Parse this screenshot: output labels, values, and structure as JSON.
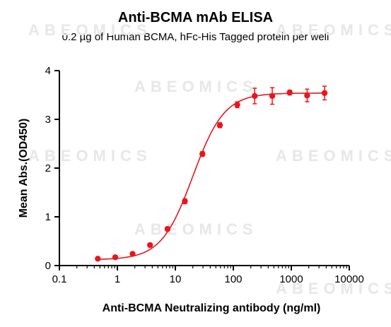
{
  "chart_data": {
    "type": "scatter",
    "title": "Anti-BCMA mAb ELISA",
    "subtitle": "0.2 µg of Human BCMA, hFc-His Tagged protein per well",
    "xlabel": "Anti-BCMA Neutralizing antibody (ng/ml)",
    "ylabel": "Mean Abs.(OD450)",
    "x_scale": "log",
    "xlim": [
      0.1,
      10000
    ],
    "ylim": [
      0,
      4
    ],
    "x_ticks": [
      "0.1",
      "1",
      "10",
      "100",
      "1000",
      "10000"
    ],
    "y_ticks": [
      "0",
      "1",
      "2",
      "3",
      "4"
    ],
    "grid": false,
    "legend": "none",
    "color": "#e8161c",
    "series": [
      {
        "x": [
          0.46,
          0.92,
          1.83,
          3.66,
          7.32,
          14.6,
          29.3,
          58.6,
          117,
          234,
          469,
          938,
          1875,
          3750
        ],
        "y": [
          0.14,
          0.17,
          0.24,
          0.42,
          0.75,
          1.32,
          2.29,
          2.88,
          3.3,
          3.48,
          3.48,
          3.55,
          3.49,
          3.54
        ],
        "error": [
          0.03,
          0.03,
          0.03,
          0.03,
          0.04,
          0.05,
          0.05,
          0.05,
          0.06,
          0.16,
          0.17,
          0.05,
          0.13,
          0.14
        ]
      }
    ],
    "fit": {
      "model": "4PL",
      "bottom": 0.12,
      "top": 3.54,
      "ec50": 20,
      "hill": 1.6
    }
  },
  "watermark": "ABEOMICS"
}
